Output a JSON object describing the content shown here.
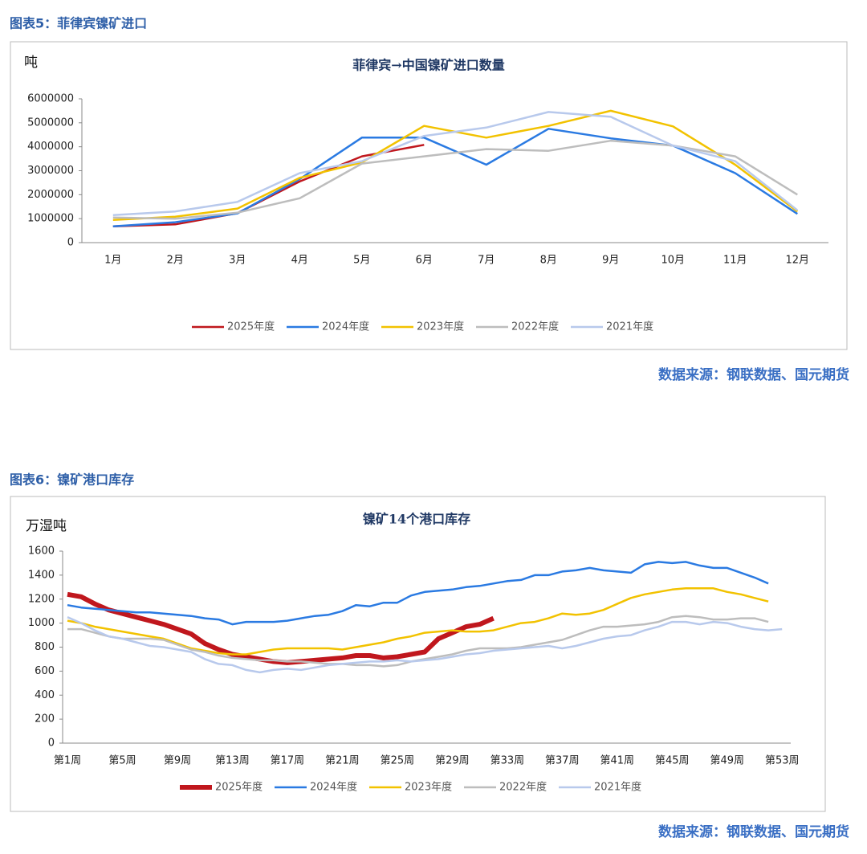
{
  "figures": [
    {
      "caption": "图表5：菲律宾镍矿进口",
      "source": "数据来源：钢联数据、国元期货"
    },
    {
      "caption": "图表6：镍矿港口库存",
      "source": "数据来源：钢联数据、国元期货"
    }
  ],
  "chart_data": [
    {
      "type": "line",
      "title": "菲律宾→中国镍矿进口数量",
      "y_label": "吨",
      "categories": [
        "1月",
        "2月",
        "3月",
        "4月",
        "5月",
        "6月",
        "7月",
        "8月",
        "9月",
        "10月",
        "11月",
        "12月"
      ],
      "ylim": [
        0,
        6000000
      ],
      "yticks": [
        0,
        1000000,
        2000000,
        3000000,
        4000000,
        5000000,
        6000000
      ],
      "legend": "bottom",
      "series": [
        {
          "name": "2025年度",
          "color": "#c0171d",
          "values": [
            680000,
            760000,
            1230000,
            2550000,
            3600000,
            4080000,
            null,
            null,
            null,
            null,
            null,
            null
          ]
        },
        {
          "name": "2024年度",
          "color": "#2a7ae2",
          "values": [
            680000,
            850000,
            1220000,
            2650000,
            4380000,
            4380000,
            3250000,
            4750000,
            4350000,
            4050000,
            2900000,
            1200000
          ]
        },
        {
          "name": "2023年度",
          "color": "#f2c200",
          "values": [
            950000,
            1080000,
            1420000,
            2700000,
            3350000,
            4870000,
            4380000,
            4870000,
            5500000,
            4850000,
            3250000,
            1300000
          ]
        },
        {
          "name": "2022年度",
          "color": "#bdbdbd",
          "values": [
            1050000,
            1000000,
            1250000,
            1850000,
            3300000,
            3600000,
            3900000,
            3830000,
            4250000,
            4050000,
            3600000,
            2000000
          ]
        },
        {
          "name": "2021年度",
          "color": "#b8c9ec",
          "values": [
            1150000,
            1300000,
            1700000,
            2900000,
            3400000,
            4450000,
            4800000,
            5450000,
            5250000,
            4050000,
            3400000,
            1350000
          ]
        }
      ]
    },
    {
      "type": "line",
      "title": "镍矿14个港口库存",
      "y_label": "万湿吨",
      "categories": [
        "第1周",
        null,
        null,
        null,
        "第5周",
        null,
        null,
        null,
        "第9周",
        null,
        null,
        null,
        "第13周",
        null,
        null,
        null,
        "第17周",
        null,
        null,
        null,
        "第21周",
        null,
        null,
        null,
        "第25周",
        null,
        null,
        null,
        "第29周",
        null,
        null,
        null,
        "第33周",
        null,
        null,
        null,
        "第37周",
        null,
        null,
        null,
        "第41周",
        null,
        null,
        null,
        "第45周",
        null,
        null,
        null,
        "第49周",
        null,
        null,
        null,
        "第53周"
      ],
      "ylim": [
        0,
        1600
      ],
      "yticks": [
        0,
        200,
        400,
        600,
        800,
        1000,
        1200,
        1400,
        1600
      ],
      "legend": "bottom",
      "series": [
        {
          "name": "2025年度",
          "color": "#c0171d",
          "values": [
            1240,
            1220,
            1160,
            1110,
            1080,
            1050,
            1020,
            990,
            950,
            910,
            830,
            780,
            740,
            720,
            700,
            680,
            670,
            680,
            690,
            700,
            710,
            730,
            730,
            710,
            720,
            740,
            760,
            870,
            920,
            970,
            990,
            1040,
            null,
            null,
            null,
            null,
            null,
            null,
            null,
            null,
            null,
            null,
            null,
            null,
            null,
            null,
            null,
            null,
            null,
            null,
            null,
            null,
            null
          ]
        },
        {
          "name": "2024年度",
          "color": "#2a7ae2",
          "values": [
            1150,
            1130,
            1120,
            1110,
            1100,
            1090,
            1090,
            1080,
            1070,
            1060,
            1040,
            1030,
            990,
            1010,
            1010,
            1010,
            1020,
            1040,
            1060,
            1070,
            1100,
            1150,
            1140,
            1170,
            1170,
            1230,
            1260,
            1270,
            1280,
            1300,
            1310,
            1330,
            1350,
            1360,
            1400,
            1400,
            1430,
            1440,
            1460,
            1440,
            1430,
            1420,
            1490,
            1510,
            1500,
            1510,
            1480,
            1460,
            1460,
            1420,
            1380,
            1330,
            null
          ]
        },
        {
          "name": "2023年度",
          "color": "#f2c200",
          "values": [
            1020,
            1000,
            970,
            950,
            930,
            910,
            890,
            870,
            830,
            790,
            770,
            750,
            740,
            740,
            760,
            780,
            790,
            790,
            790,
            790,
            780,
            800,
            820,
            840,
            870,
            890,
            920,
            930,
            940,
            930,
            930,
            940,
            970,
            1000,
            1010,
            1040,
            1080,
            1070,
            1080,
            1110,
            1160,
            1210,
            1240,
            1260,
            1280,
            1290,
            1290,
            1290,
            1260,
            1240,
            1210,
            1180,
            null
          ]
        },
        {
          "name": "2022年度",
          "color": "#bdbdbd",
          "values": [
            950,
            950,
            920,
            890,
            870,
            870,
            870,
            860,
            820,
            780,
            760,
            730,
            710,
            700,
            690,
            690,
            680,
            680,
            670,
            660,
            660,
            650,
            650,
            640,
            650,
            680,
            700,
            720,
            740,
            770,
            790,
            790,
            790,
            800,
            820,
            840,
            860,
            900,
            940,
            970,
            970,
            980,
            990,
            1010,
            1050,
            1060,
            1050,
            1030,
            1030,
            1040,
            1040,
            1010,
            null
          ]
        },
        {
          "name": "2021年度",
          "color": "#b8c9ec",
          "values": [
            1050,
            1000,
            940,
            890,
            870,
            840,
            810,
            800,
            780,
            760,
            700,
            660,
            650,
            610,
            590,
            610,
            620,
            610,
            630,
            650,
            660,
            670,
            680,
            680,
            690,
            680,
            690,
            700,
            720,
            740,
            750,
            770,
            780,
            790,
            800,
            810,
            790,
            810,
            840,
            870,
            890,
            900,
            940,
            970,
            1010,
            1010,
            990,
            1010,
            1000,
            970,
            950,
            940,
            950
          ]
        }
      ]
    }
  ]
}
